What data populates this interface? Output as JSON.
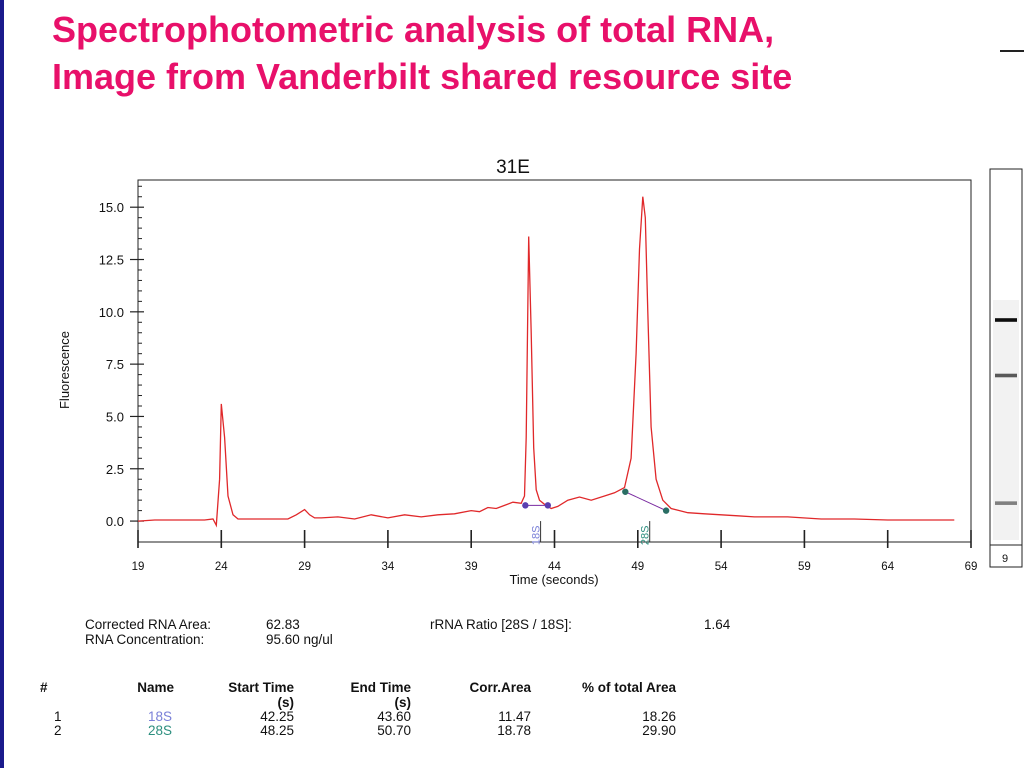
{
  "slide": {
    "title_line1": "Spectrophotometric analysis of total RNA,",
    "title_line2": "Image from Vanderbilt shared resource site",
    "title_color": "#e8106a"
  },
  "chart_data": {
    "type": "line",
    "title": "31E",
    "xlabel": "Time (seconds)",
    "ylabel": "Fluorescence",
    "xlim": [
      19,
      69
    ],
    "ylim": [
      -1.0,
      16.3
    ],
    "x_ticks": [
      19,
      24,
      29,
      34,
      39,
      44,
      49,
      54,
      59,
      64,
      69
    ],
    "y_ticks": [
      "0.0",
      "2.5",
      "5.0",
      "7.5",
      "10.0",
      "12.5",
      "15.0"
    ],
    "line_color": "#e0282a",
    "series": [
      {
        "x": [
          19.0,
          20.0,
          21.0,
          22.0,
          23.0,
          23.5,
          23.7,
          23.9,
          24.0,
          24.2,
          24.4,
          24.7,
          25.0,
          26.0,
          27.0,
          28.0,
          28.5,
          29.0,
          29.3,
          29.6,
          30.0,
          31.0,
          32.0,
          33.0,
          34.0,
          35.0,
          36.0,
          37.0,
          38.0,
          39.0,
          39.5,
          40.0,
          40.5,
          41.0,
          41.5,
          42.0,
          42.2,
          42.3,
          42.45,
          42.6,
          42.75,
          42.9,
          43.1,
          43.4,
          43.8,
          44.2,
          44.8,
          45.5,
          46.2,
          47.0,
          47.6,
          48.2,
          48.6,
          48.9,
          49.1,
          49.3,
          49.45,
          49.6,
          49.8,
          50.1,
          50.5,
          51.0,
          51.5,
          52.0,
          53.0,
          54.0,
          55.0,
          56.0,
          58.0,
          60.0,
          62.0,
          64.0,
          66.0,
          68.0
        ],
        "y": [
          0.0,
          0.05,
          0.05,
          0.05,
          0.05,
          0.1,
          -0.2,
          2.0,
          5.6,
          4.0,
          1.2,
          0.3,
          0.1,
          0.1,
          0.1,
          0.1,
          0.3,
          0.55,
          0.3,
          0.15,
          0.15,
          0.2,
          0.1,
          0.3,
          0.15,
          0.3,
          0.2,
          0.3,
          0.35,
          0.5,
          0.45,
          0.65,
          0.6,
          0.75,
          0.9,
          0.85,
          1.2,
          4.0,
          13.6,
          9.0,
          3.5,
          1.5,
          1.0,
          0.8,
          0.6,
          0.7,
          1.0,
          1.15,
          1.0,
          1.2,
          1.35,
          1.6,
          3.0,
          8.0,
          13.0,
          15.5,
          14.5,
          10.0,
          4.5,
          2.0,
          1.0,
          0.6,
          0.5,
          0.4,
          0.35,
          0.3,
          0.25,
          0.2,
          0.2,
          0.1,
          0.1,
          0.05,
          0.05,
          0.05
        ]
      }
    ],
    "peak_markers": [
      {
        "label": "18S",
        "color": "#7a80d8",
        "start_x": 42.25,
        "end_x": 43.6,
        "start_y": 0.75,
        "end_y": 0.75
      },
      {
        "label": "28S",
        "color": "#2d8f7f",
        "start_x": 48.25,
        "end_x": 50.7,
        "start_y": 1.4,
        "end_y": 0.5
      }
    ],
    "gel_lane": {
      "lane_label": "9",
      "bands": [
        {
          "position": 0.4,
          "intensity": 0.95
        },
        {
          "position": 0.55,
          "intensity": 0.65
        },
        {
          "position": 0.895,
          "intensity": 0.5
        }
      ]
    }
  },
  "summary": {
    "corrected_area_label": "Corrected RNA Area:",
    "corrected_area_value": "62.83",
    "concentration_label": "RNA Concentration:",
    "concentration_value": "95.60 ng/ul",
    "ratio_label": "rRNA Ratio [28S / 18S]:",
    "ratio_value": "1.64"
  },
  "table": {
    "headers": [
      "#",
      "Name",
      "Start Time",
      "End Time",
      "Corr.Area",
      "% of total Area"
    ],
    "header_units": [
      "",
      "",
      "(s)",
      "(s)",
      "",
      ""
    ],
    "rows": [
      {
        "num": "1",
        "name": "18S",
        "name_color": "#7a80d8",
        "start": "42.25",
        "end": "43.60",
        "area": "11.47",
        "pct": "18.26"
      },
      {
        "num": "2",
        "name": "28S",
        "name_color": "#2d8f7f",
        "start": "48.25",
        "end": "50.70",
        "area": "18.78",
        "pct": "29.90"
      }
    ]
  }
}
